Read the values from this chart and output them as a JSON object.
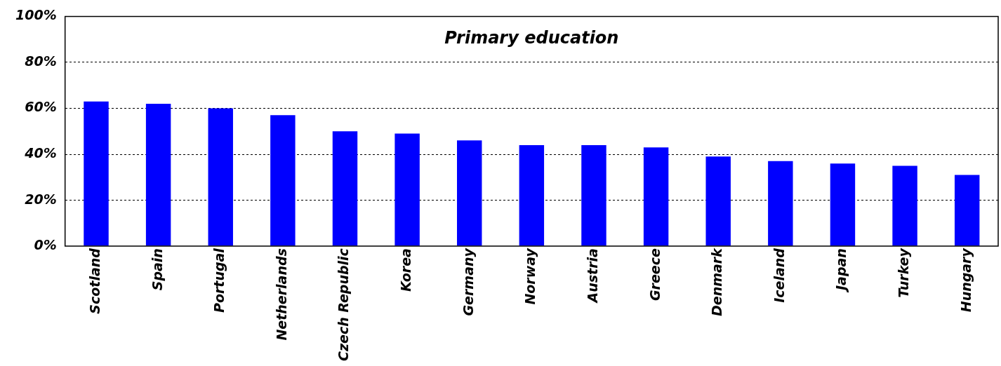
{
  "chart_data": {
    "type": "bar",
    "title": "Primary education",
    "categories": [
      "Scotland",
      "Spain",
      "Portugal",
      "Netherlands",
      "Czech Republic",
      "Korea",
      "Germany",
      "Norway",
      "Austria",
      "Greece",
      "Denmark",
      "Iceland",
      "Japan",
      "Turkey",
      "Hungary"
    ],
    "values": [
      63,
      62,
      60,
      57,
      50,
      49,
      46,
      44,
      44,
      43,
      39,
      37,
      36,
      35,
      31
    ],
    "color": "#0000ff",
    "ylim": [
      0,
      100
    ],
    "yticks": [
      {
        "value": 0,
        "label": "0%"
      },
      {
        "value": 20,
        "label": "20%"
      },
      {
        "value": 40,
        "label": "40%"
      },
      {
        "value": 60,
        "label": "60%"
      },
      {
        "value": 80,
        "label": "80%"
      },
      {
        "value": 100,
        "label": "100%"
      }
    ],
    "grid": "y",
    "legend": false
  }
}
